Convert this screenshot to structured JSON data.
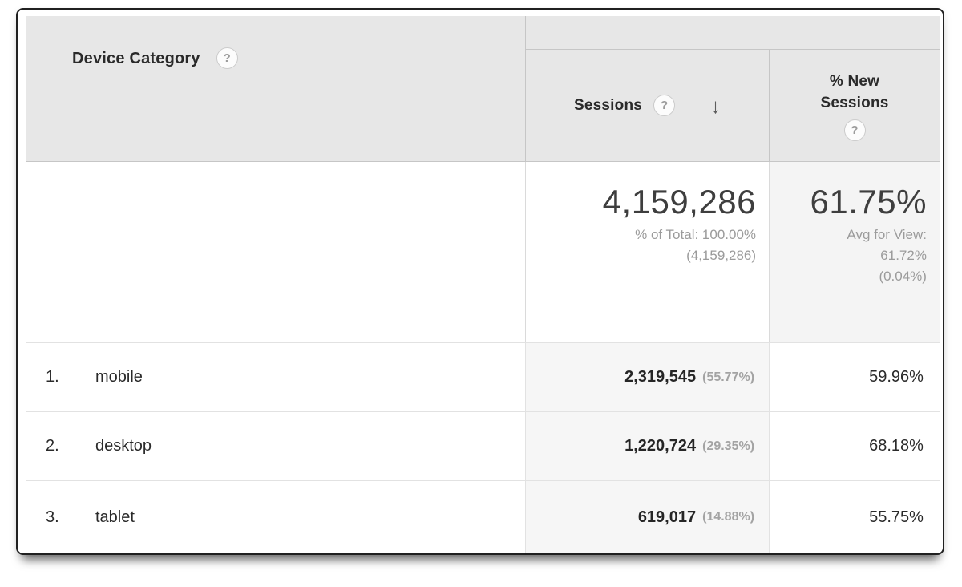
{
  "icons": {
    "help": "?",
    "sort_desc": "↓"
  },
  "colors": {
    "header_bg": "#e7e7e7",
    "sorted_column_bg": "#f6f6f6",
    "summary_alt_bg": "#f4f4f4",
    "card_border": "#202020",
    "primary_text": "#2a2a2a",
    "secondary_text": "#9b9b9b"
  },
  "table": {
    "dimension_header": {
      "label": "Device Category"
    },
    "metric_headers": {
      "sessions": {
        "label": "Sessions",
        "sorted": "descending"
      },
      "new_sessions": {
        "label": "% New Sessions"
      }
    },
    "summary": {
      "sessions": {
        "total": "4,159,286",
        "line1": "% of Total: 100.00%",
        "line2": "(4,159,286)"
      },
      "new_sessions": {
        "total": "61.75%",
        "line1": "Avg for View:",
        "line2": "61.72%",
        "line3": "(0.04%)"
      }
    },
    "rows": [
      {
        "index": "1.",
        "label": "mobile",
        "sessions": "2,319,545",
        "sessions_pct": "(55.77%)",
        "new_sessions": "59.96%"
      },
      {
        "index": "2.",
        "label": "desktop",
        "sessions": "1,220,724",
        "sessions_pct": "(29.35%)",
        "new_sessions": "68.18%"
      },
      {
        "index": "3.",
        "label": "tablet",
        "sessions": "619,017",
        "sessions_pct": "(14.88%)",
        "new_sessions": "55.75%"
      }
    ]
  }
}
